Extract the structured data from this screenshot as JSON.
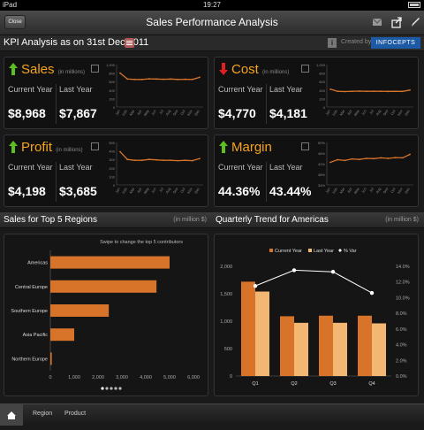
{
  "status": {
    "carrier": "iPad",
    "time": "19:27"
  },
  "nav": {
    "close_label": "Close",
    "title": "Sales Performance Analysis"
  },
  "kpi_bar": {
    "title": "KPI Analysis as on 31st Dec 2011",
    "info": "i",
    "created_by": "Created by",
    "logo": "INFOCEPTS"
  },
  "cards": [
    {
      "metric": "Sales",
      "unit": "(in millions)",
      "trend": "up",
      "current_label": "Current Year",
      "last_label": "Last Year",
      "current": "$8,968",
      "last": "$7,867",
      "y_ticks": [
        "1,000",
        "800",
        "600",
        "400",
        "200",
        "0"
      ],
      "months": [
        "Jan",
        "Feb",
        "Mar",
        "Apr",
        "May",
        "Jun",
        "Jul",
        "Aug",
        "Sep",
        "Oct",
        "Nov",
        "Dec"
      ],
      "series": [
        800,
        660,
        650,
        650,
        665,
        660,
        655,
        660,
        650,
        655,
        650,
        700
      ]
    },
    {
      "metric": "Cost",
      "unit": "(in millions)",
      "trend": "down",
      "current_label": "Current Year",
      "last_label": "Last Year",
      "current": "$4,770",
      "last": "$4,181",
      "y_ticks": [
        "1,000",
        "800",
        "600",
        "400",
        "200",
        "0"
      ],
      "months": [
        "Jan",
        "Feb",
        "Mar",
        "Apr",
        "May",
        "Jun",
        "Jul",
        "Aug",
        "Sep",
        "Oct",
        "Nov",
        "Dec"
      ],
      "series": [
        420,
        370,
        365,
        370,
        375,
        370,
        372,
        370,
        368,
        370,
        368,
        400
      ]
    },
    {
      "metric": "Profit",
      "unit": "(in millions)",
      "trend": "up",
      "current_label": "Current Year",
      "last_label": "Last Year",
      "current": "$4,198",
      "last": "$3,685",
      "y_ticks": [
        "500",
        "400",
        "300",
        "200",
        "100",
        "0"
      ],
      "months": [
        "Jan",
        "Feb",
        "Mar",
        "Apr",
        "May",
        "Jun",
        "Jul",
        "Aug",
        "Sep",
        "Oct",
        "Nov",
        "Dec"
      ],
      "series": [
        390,
        300,
        290,
        290,
        300,
        295,
        290,
        290,
        285,
        290,
        285,
        310
      ]
    },
    {
      "metric": "Margin",
      "unit": "",
      "trend": "up",
      "current_label": "Current Year",
      "last_label": "Last Year",
      "current": "44.36%",
      "last": "43.44%",
      "y_ticks": [
        "50%",
        "46%",
        "42%",
        "38%",
        "34%"
      ],
      "months": [
        "Jan",
        "Feb",
        "Mar",
        "Apr",
        "May",
        "Jun",
        "Jul",
        "Aug",
        "Sep",
        "Oct",
        "Nov",
        "Dec"
      ],
      "series": [
        42.5,
        43.5,
        43.2,
        43.8,
        43.6,
        44.0,
        43.9,
        44.2,
        44.0,
        44.3,
        44.2,
        45.5
      ]
    }
  ],
  "regions_section": {
    "title": "Sales for Top 5 Regions",
    "unit": "(in million $)",
    "hint": "Swipe to change the top 5 contributors"
  },
  "trend_section": {
    "title": "Quarterly Trend for Americas",
    "unit": "(in million $)"
  },
  "chart_data": [
    {
      "type": "bar",
      "orientation": "horizontal",
      "categories": [
        "Americas",
        "Central Europe",
        "Southern Europe",
        "Asia Pacific",
        "Northern Europe"
      ],
      "values": [
        5000,
        4450,
        2450,
        1000,
        60
      ],
      "x_ticks": [
        "0",
        "1,000",
        "2,000",
        "3,000",
        "4,000",
        "5,000",
        "6,000"
      ],
      "xlim": [
        0,
        6000
      ],
      "color": "#d8742a"
    },
    {
      "type": "bar",
      "categories": [
        "Q1",
        "Q2",
        "Q3",
        "Q4"
      ],
      "series": [
        {
          "name": "Current Year",
          "values": [
            1720,
            1090,
            1100,
            1100
          ],
          "color": "#d8742a"
        },
        {
          "name": "Last Year",
          "values": [
            1540,
            970,
            970,
            960
          ],
          "color": "#f3b673"
        },
        {
          "name": "% Var",
          "values": [
            11.5,
            13.5,
            13.3,
            10.6
          ],
          "color": "#ffffff",
          "type": "line"
        }
      ],
      "y_ticks": [
        "2,000",
        "1,500",
        "1,000",
        "500",
        "0"
      ],
      "ylim": [
        0,
        2000
      ],
      "y2_ticks": [
        "14.0%",
        "12.0%",
        "10.0%",
        "8.0%",
        "6.0%",
        "4.0%",
        "2.0%",
        "0.0%"
      ],
      "y2lim": [
        0,
        14
      ]
    }
  ],
  "tabs": [
    "Region",
    "Product"
  ]
}
